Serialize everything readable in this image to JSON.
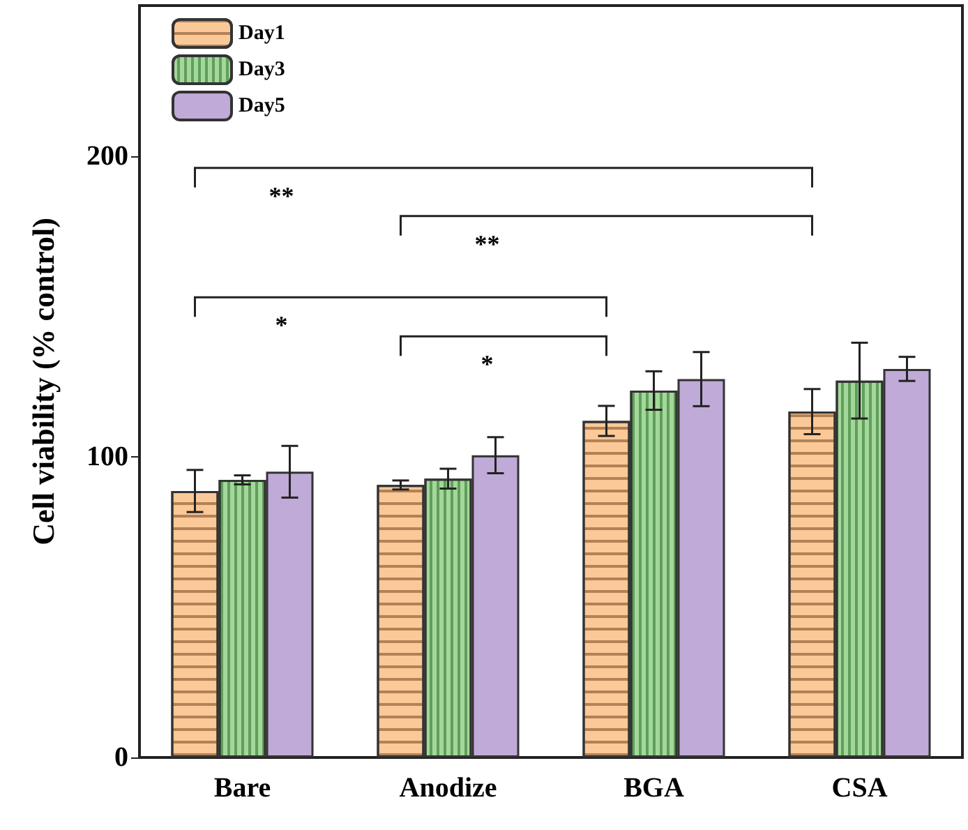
{
  "chart_data": {
    "type": "bar",
    "ylabel": "Cell viability (% control)",
    "categories": [
      "Bare",
      "Anodize",
      "BGA",
      "CSA"
    ],
    "series": [
      {
        "name": "Day1",
        "color": "#fbc898",
        "values": [
          88.6,
          90.6,
          111.9,
          115
        ],
        "errors": [
          7,
          1.5,
          5,
          7.5
        ]
      },
      {
        "name": "Day3",
        "color": "#a4d89a",
        "values": [
          92.3,
          92.7,
          122,
          125.3
        ],
        "errors": [
          1.5,
          3.3,
          6.4,
          12.6
        ]
      },
      {
        "name": "Day5",
        "color": "#c0aad8",
        "values": [
          95,
          100.5,
          125.8,
          129.2
        ],
        "errors": [
          8.6,
          6,
          9,
          4
        ]
      }
    ],
    "ylim": [
      0,
      250
    ],
    "yticks": [
      0,
      100,
      200
    ],
    "grid": false,
    "legend": "top left",
    "annotations": [
      "**",
      "**",
      "*",
      "*"
    ]
  }
}
